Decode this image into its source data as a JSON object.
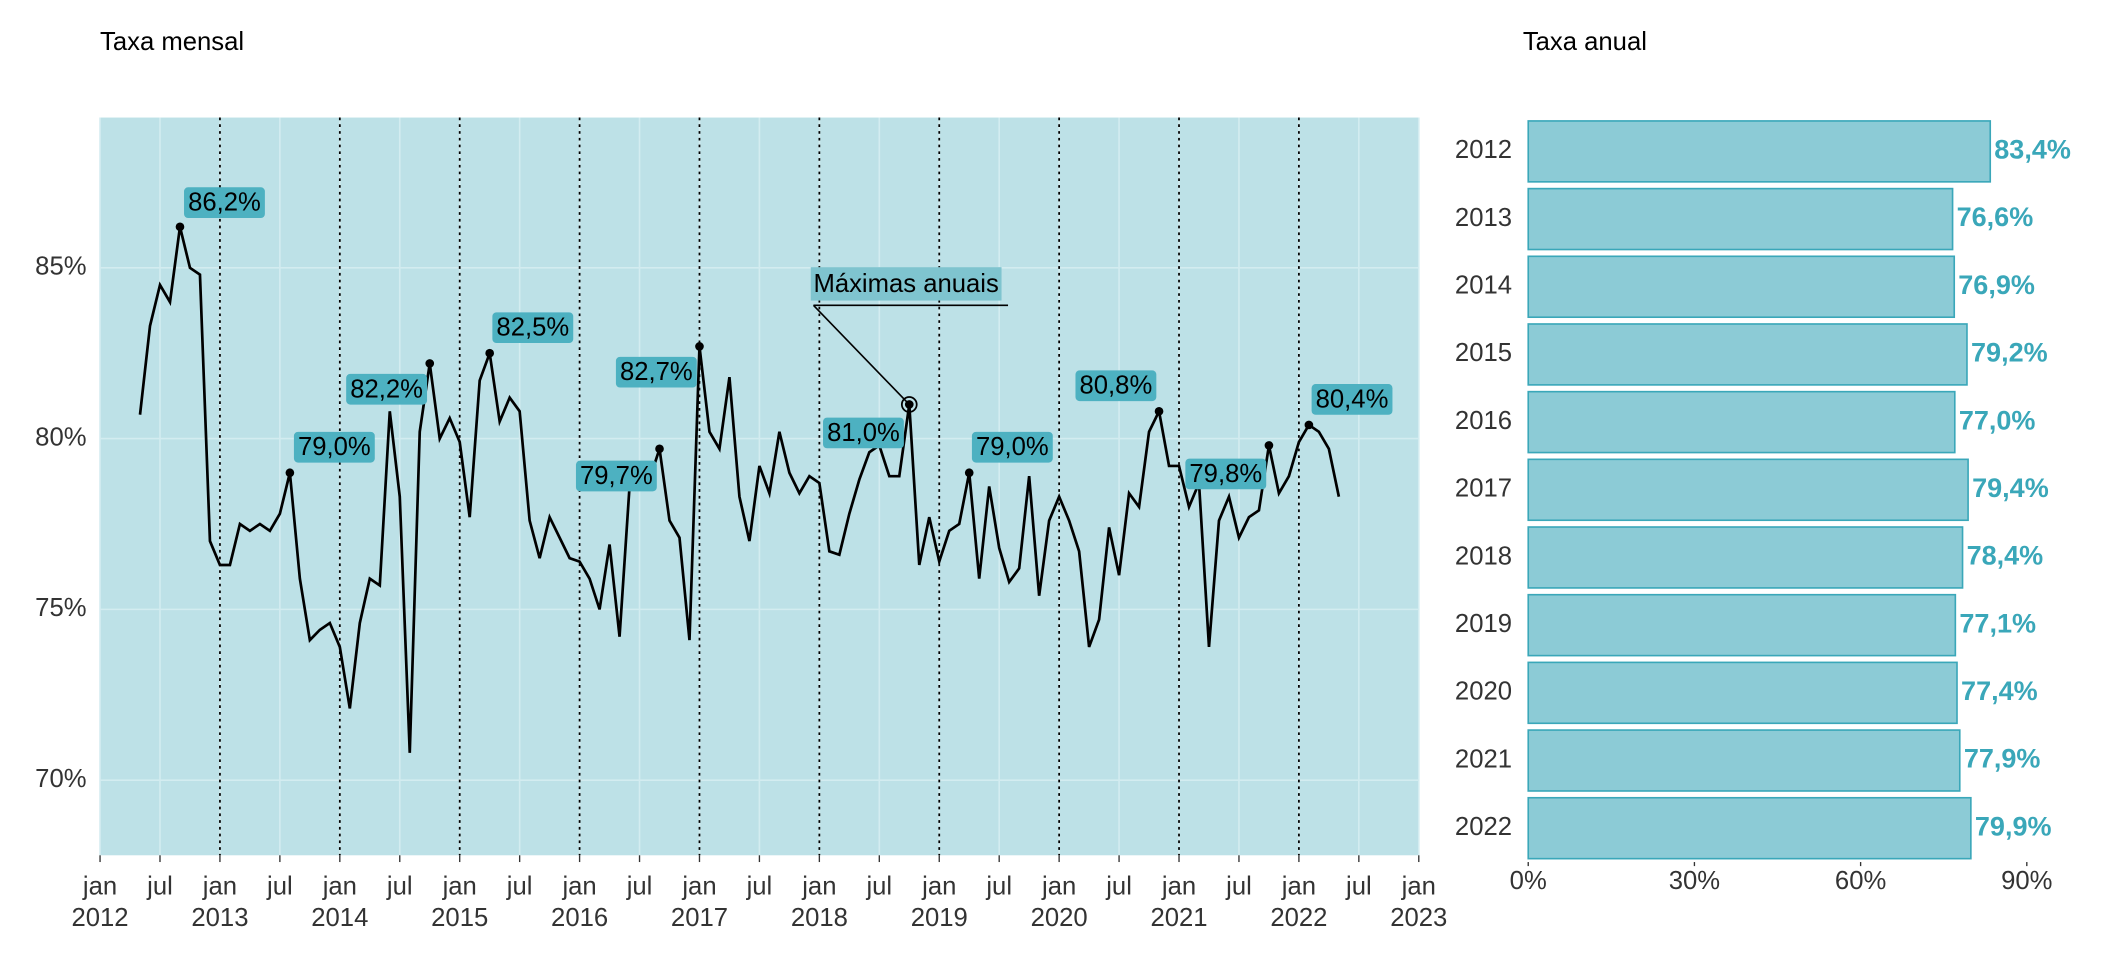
{
  "chart_data": [
    {
      "type": "line",
      "title": "Taxa mensal",
      "x": [
        "2012-05",
        "2012-06",
        "2012-07",
        "2012-08",
        "2012-09",
        "2012-10",
        "2012-11",
        "2012-12",
        "2013-01",
        "2013-02",
        "2013-03",
        "2013-04",
        "2013-05",
        "2013-06",
        "2013-07",
        "2013-08",
        "2013-09",
        "2013-10",
        "2013-11",
        "2013-12",
        "2014-01",
        "2014-02",
        "2014-03",
        "2014-04",
        "2014-05",
        "2014-06",
        "2014-07",
        "2014-08",
        "2014-09",
        "2014-10",
        "2014-11",
        "2014-12",
        "2015-01",
        "2015-02",
        "2015-03",
        "2015-04",
        "2015-05",
        "2015-06",
        "2015-07",
        "2015-08",
        "2015-09",
        "2015-10",
        "2015-11",
        "2015-12",
        "2016-01",
        "2016-02",
        "2016-03",
        "2016-04",
        "2016-05",
        "2016-06",
        "2016-07",
        "2016-08",
        "2016-09",
        "2016-10",
        "2016-11",
        "2016-12",
        "2017-01",
        "2017-02",
        "2017-03",
        "2017-04",
        "2017-05",
        "2017-06",
        "2017-07",
        "2017-08",
        "2017-09",
        "2017-10",
        "2017-11",
        "2017-12",
        "2018-01",
        "2018-02",
        "2018-03",
        "2018-04",
        "2018-05",
        "2018-06",
        "2018-07",
        "2018-08",
        "2018-09",
        "2018-10",
        "2018-11",
        "2018-12",
        "2019-01",
        "2019-02",
        "2019-03",
        "2019-04",
        "2019-05",
        "2019-06",
        "2019-07",
        "2019-08",
        "2019-09",
        "2019-10",
        "2019-11",
        "2019-12",
        "2020-01",
        "2020-02",
        "2020-03",
        "2020-04",
        "2020-05",
        "2020-06",
        "2020-07",
        "2020-08",
        "2020-09",
        "2020-10",
        "2020-11",
        "2020-12",
        "2021-01",
        "2021-02",
        "2021-03",
        "2021-04",
        "2021-05",
        "2021-06",
        "2021-07",
        "2021-08",
        "2021-09",
        "2021-10",
        "2021-11",
        "2021-12",
        "2022-01",
        "2022-02",
        "2022-03",
        "2022-04",
        "2022-05"
      ],
      "series": [
        {
          "color": "#000000",
          "values": [
            80.7,
            83.3,
            84.5,
            84.0,
            86.2,
            85.0,
            84.8,
            77.0,
            76.3,
            76.3,
            77.5,
            77.3,
            77.5,
            77.3,
            77.8,
            79.0,
            75.9,
            74.1,
            74.4,
            74.6,
            73.9,
            72.1,
            74.6,
            75.9,
            75.7,
            80.8,
            78.3,
            70.8,
            80.2,
            82.2,
            80.0,
            80.6,
            79.9,
            77.7,
            81.7,
            82.5,
            80.5,
            81.2,
            80.8,
            77.6,
            76.5,
            77.7,
            77.1,
            76.5,
            76.4,
            75.9,
            75.0,
            76.9,
            74.2,
            78.6,
            78.7,
            78.8,
            79.7,
            77.6,
            77.1,
            74.1,
            82.7,
            80.2,
            79.7,
            81.8,
            78.3,
            77.0,
            79.2,
            78.4,
            80.2,
            79.0,
            78.4,
            78.9,
            78.7,
            76.7,
            76.6,
            77.8,
            78.8,
            79.6,
            79.8,
            78.9,
            78.9,
            81.0,
            76.3,
            77.7,
            76.4,
            77.3,
            77.5,
            79.0,
            75.9,
            78.6,
            76.8,
            75.8,
            76.2,
            78.9,
            75.4,
            77.6,
            78.3,
            77.6,
            76.7,
            73.9,
            74.7,
            77.4,
            76.0,
            78.4,
            78.0,
            80.2,
            80.8,
            79.2,
            79.2,
            78.0,
            78.7,
            73.9,
            77.6,
            78.3,
            77.1,
            77.7,
            77.9,
            79.8,
            78.4,
            78.9,
            79.9,
            80.4,
            80.2,
            79.7,
            78.3
          ]
        }
      ],
      "maxima": {
        "x": [
          "2012-09",
          "2013-08",
          "2014-10",
          "2015-04",
          "2016-09",
          "2017-01",
          "2018-10",
          "2019-04",
          "2020-11",
          "2021-10",
          "2022-02"
        ],
        "values": [
          86.2,
          79.0,
          82.2,
          82.5,
          79.7,
          82.7,
          81.0,
          79.0,
          80.8,
          79.8,
          80.4
        ],
        "value_labels": [
          "86,2%",
          "79,0%",
          "82,2%",
          "82,5%",
          "79,7%",
          "82,7%",
          "81,0%",
          "79,0%",
          "80,8%",
          "79,8%",
          "80,4%"
        ],
        "color": "#4db1c1"
      },
      "callout": "Máximas anuais",
      "xlim": [
        "2012-01",
        "2023-01"
      ],
      "xticks": [
        {
          "value": "2012-01",
          "label": "jan 2012"
        },
        {
          "value": "2012-07",
          "label": "jul"
        },
        {
          "value": "2013-01",
          "label": "jan 2013"
        },
        {
          "value": "2013-07",
          "label": "jul"
        },
        {
          "value": "2014-01",
          "label": "jan 2014"
        },
        {
          "value": "2014-07",
          "label": "jul"
        },
        {
          "value": "2015-01",
          "label": "jan 2015"
        },
        {
          "value": "2015-07",
          "label": "jul"
        },
        {
          "value": "2016-01",
          "label": "jan 2016"
        },
        {
          "value": "2016-07",
          "label": "jul"
        },
        {
          "value": "2017-01",
          "label": "jan 2017"
        },
        {
          "value": "2017-07",
          "label": "jul"
        },
        {
          "value": "2018-01",
          "label": "jan 2018"
        },
        {
          "value": "2018-07",
          "label": "jul"
        },
        {
          "value": "2019-01",
          "label": "jan 2019"
        },
        {
          "value": "2019-07",
          "label": "jul"
        },
        {
          "value": "2020-01",
          "label": "jan 2020"
        },
        {
          "value": "2020-07",
          "label": "jul"
        },
        {
          "value": "2021-01",
          "label": "jan 2021"
        },
        {
          "value": "2021-07",
          "label": "jul"
        },
        {
          "value": "2022-01",
          "label": "jan 2022"
        },
        {
          "value": "2022-07",
          "label": "jul"
        },
        {
          "value": "2023-01",
          "label": "jan 2023"
        }
      ],
      "ylim": [
        67.8,
        89.4
      ],
      "yticks": [
        {
          "value": 70,
          "label": "70%"
        },
        {
          "value": 75,
          "label": "75%"
        },
        {
          "value": 80,
          "label": "80%"
        },
        {
          "value": 85,
          "label": "85%"
        }
      ],
      "grid": true,
      "year_lines": true,
      "background": "#bde1e7"
    },
    {
      "type": "hbar",
      "title": "Taxa anual",
      "categories": [
        "2012",
        "2013",
        "2014",
        "2015",
        "2016",
        "2017",
        "2018",
        "2019",
        "2020",
        "2021",
        "2022"
      ],
      "values": [
        83.4,
        76.6,
        76.9,
        79.2,
        77.0,
        79.4,
        78.4,
        77.1,
        77.4,
        77.9,
        79.9
      ],
      "value_labels": [
        "83,4%",
        "76,6%",
        "76,9%",
        "79,2%",
        "77,0%",
        "79,4%",
        "78,4%",
        "77,1%",
        "77,4%",
        "77,9%",
        "79,9%"
      ],
      "color": "#8ccbd6",
      "edge_color": "#3aa7b9",
      "xlim": [
        0,
        90
      ],
      "xticks": [
        {
          "value": 0,
          "label": "0%"
        },
        {
          "value": 30,
          "label": "30%"
        },
        {
          "value": 60,
          "label": "60%"
        },
        {
          "value": 90,
          "label": "90%"
        }
      ]
    }
  ]
}
